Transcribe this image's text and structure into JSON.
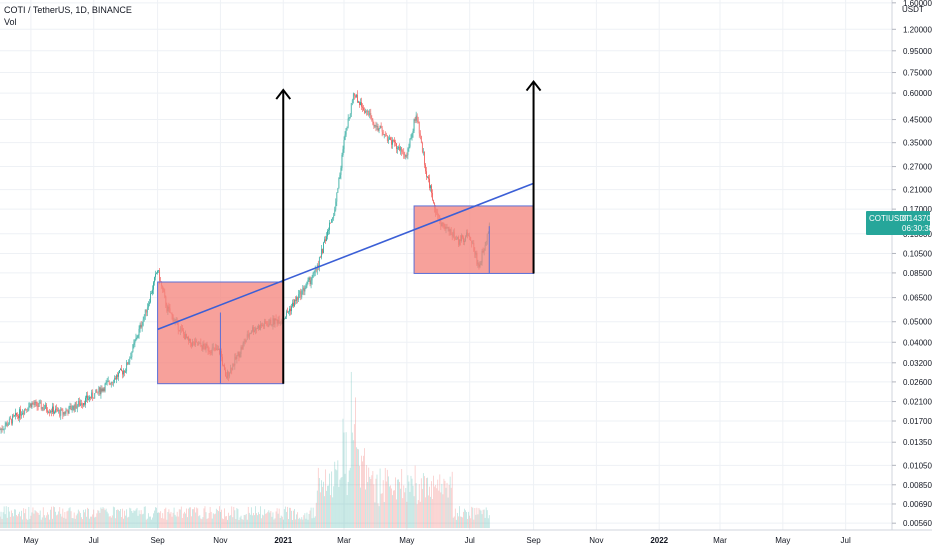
{
  "header": {
    "symbol_line": "COTI / TetherUS, 1D, BINANCE",
    "indicator": "Vol"
  },
  "price_scale": {
    "currency": "USDT",
    "ticks": [
      "1.60000",
      "1.20000",
      "0.95000",
      "0.75000",
      "0.60000",
      "0.45000",
      "0.35000",
      "0.27000",
      "0.21000",
      "0.17000",
      "0.13000",
      "0.10500",
      "0.08500",
      "0.06500",
      "0.05000",
      "0.04000",
      "0.03200",
      "0.02600",
      "0.02100",
      "0.01700",
      "0.01350",
      "0.01050",
      "0.00850",
      "0.00690",
      "0.00560"
    ]
  },
  "last_price_label": {
    "symbol": "COTIUSDT",
    "price": "0.14370",
    "countdown": "06:30:38",
    "color": "#26a69a"
  },
  "time_axis": {
    "labels": [
      "May",
      "Jul",
      "Sep",
      "Nov",
      "2021",
      "Mar",
      "May",
      "Jul",
      "Sep",
      "Nov",
      "2022",
      "Mar",
      "May",
      "Jul"
    ]
  },
  "chart_data": {
    "type": "candlestick",
    "title": "COTI / TetherUS, 1D, BINANCE",
    "y_scale": "log",
    "ylim": [
      0.0052,
      1.65
    ],
    "xlim": [
      "2020-04-01",
      "2022-08-15"
    ],
    "colors": {
      "up": "#26a69a",
      "down": "#ef5350",
      "annotation_box": "#f4817a",
      "trendline": "#3b5fd6",
      "arrow": "#000000"
    },
    "price_path": [
      [
        "2020-04-01",
        0.0155
      ],
      [
        "2020-05-01",
        0.0205
      ],
      [
        "2020-06-01",
        0.0185
      ],
      [
        "2020-07-01",
        0.0225
      ],
      [
        "2020-08-01",
        0.03
      ],
      [
        "2020-08-20",
        0.055
      ],
      [
        "2020-09-01",
        0.088
      ],
      [
        "2020-09-10",
        0.058
      ],
      [
        "2020-10-01",
        0.04
      ],
      [
        "2020-11-01",
        0.036
      ],
      [
        "2020-11-06",
        0.027
      ],
      [
        "2020-12-01",
        0.046
      ],
      [
        "2021-01-01",
        0.052
      ],
      [
        "2021-02-01",
        0.085
      ],
      [
        "2021-02-20",
        0.17
      ],
      [
        "2021-03-01",
        0.35
      ],
      [
        "2021-03-10",
        0.6
      ],
      [
        "2021-04-01",
        0.42
      ],
      [
        "2021-05-01",
        0.3
      ],
      [
        "2021-05-10",
        0.48
      ],
      [
        "2021-05-20",
        0.25
      ],
      [
        "2021-06-01",
        0.15
      ],
      [
        "2021-06-20",
        0.12
      ],
      [
        "2021-07-01",
        0.13
      ],
      [
        "2021-07-10",
        0.09
      ],
      [
        "2021-07-20",
        0.143
      ]
    ],
    "annotations": {
      "boxes": [
        {
          "x0": "2020-09-01",
          "x1": "2021-01-01",
          "y_top": 0.077,
          "y_bottom": 0.0255,
          "divider_x": "2020-11-01"
        },
        {
          "x0": "2021-05-08",
          "x1": "2021-09-01",
          "y_top": 0.176,
          "y_bottom": 0.0845,
          "divider_x": "2021-07-20"
        }
      ],
      "trendline": {
        "start": [
          "2020-09-01",
          0.046
        ],
        "end": [
          "2021-09-01",
          0.225
        ]
      },
      "arrows": [
        {
          "x": "2021-01-01",
          "from": 0.0255,
          "to": 0.62
        },
        {
          "x": "2021-09-01",
          "from": 0.0845,
          "to": 0.68
        }
      ]
    },
    "volume": {
      "peak_date": "2021-03-08"
    }
  }
}
